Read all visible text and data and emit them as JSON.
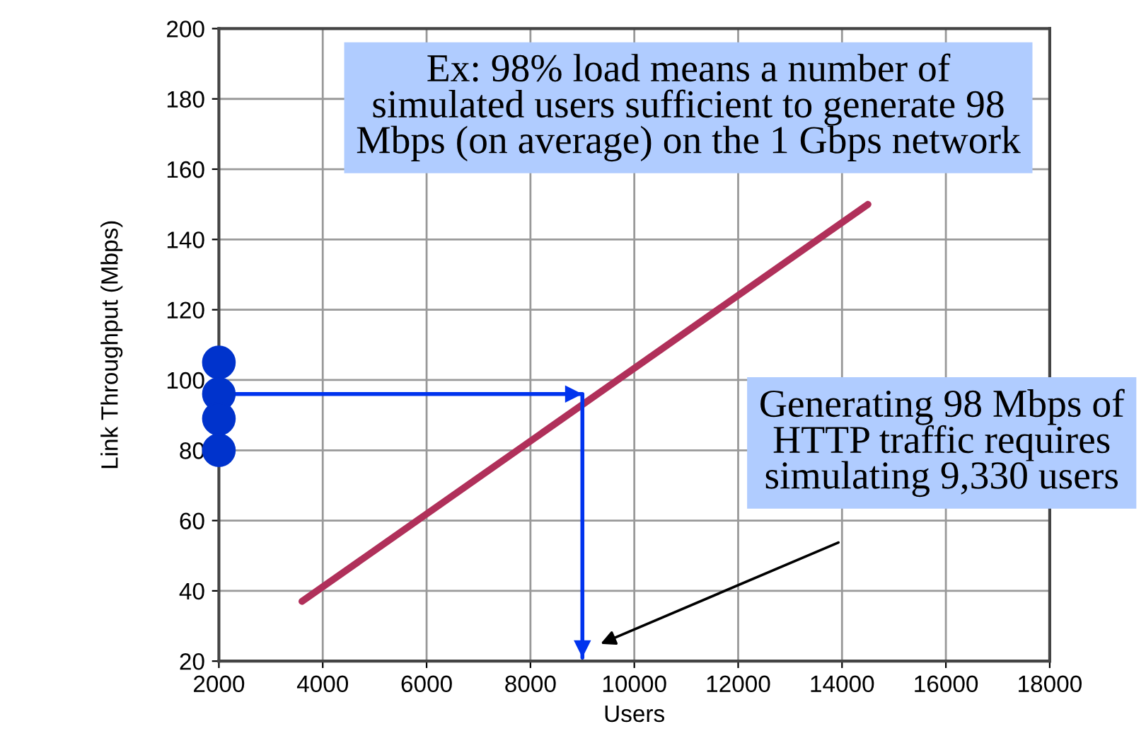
{
  "chart_data": {
    "type": "line",
    "xlabel": "Users",
    "ylabel": "Link Throughput (Mbps)",
    "xlim": [
      2000,
      18000
    ],
    "xticks": [
      2000,
      4000,
      6000,
      8000,
      10000,
      12000,
      14000,
      16000,
      18000
    ],
    "ylim": [
      20,
      200
    ],
    "yticks": [
      20,
      40,
      60,
      80,
      100,
      120,
      140,
      160,
      180,
      200
    ],
    "grid": true,
    "series": [
      {
        "type": "line",
        "color": "#b0305a",
        "x": [
          3600,
          14500
        ],
        "values": [
          37,
          150
        ],
        "marker": "none"
      },
      {
        "type": "scatter",
        "color": "#0033cc",
        "x": [
          2000,
          2000,
          2000,
          2000
        ],
        "values": [
          105,
          96,
          89,
          80
        ],
        "marker": "circle"
      },
      {
        "type": "line",
        "color": "#0033ee",
        "x": [
          2000,
          9000,
          9000
        ],
        "values": [
          96,
          96,
          21
        ],
        "marker": "none"
      }
    ],
    "annotations": [
      "Ex: 98% load means a number of\nsimulated users sufficient to generate 98\nMbps (on average) on the 1 Gbps network",
      "Generating 98 Mbps of\nHTTP traffic requires\nsimulating 9,330 users"
    ]
  }
}
